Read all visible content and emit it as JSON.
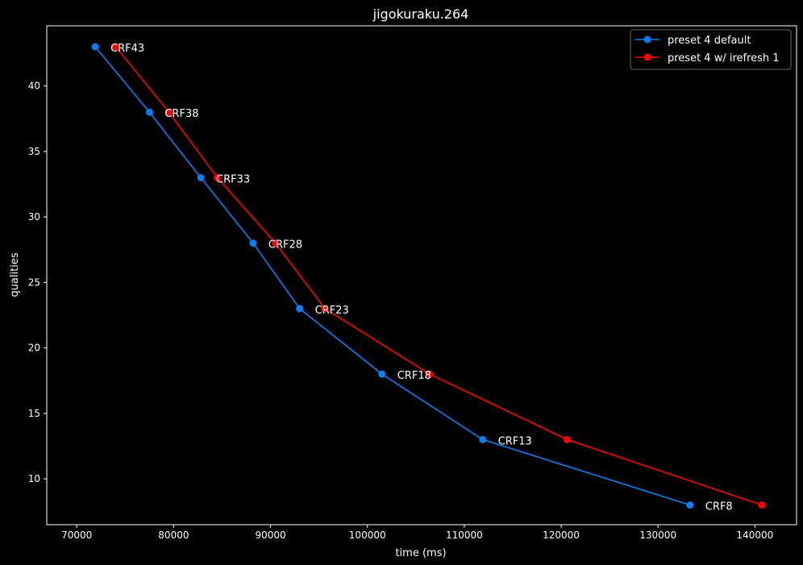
{
  "chart_data": {
    "type": "line",
    "title": "jigokuraku.264",
    "xlabel": "time (ms)",
    "ylabel": "qualities",
    "xlim": [
      66900,
      144300
    ],
    "ylim": [
      6.5,
      44.6
    ],
    "xticks": [
      70000,
      80000,
      90000,
      100000,
      110000,
      120000,
      130000,
      140000
    ],
    "yticks": [
      10,
      15,
      20,
      25,
      30,
      35,
      40
    ],
    "legend_position": "top-right",
    "series": [
      {
        "name": "preset 4 default",
        "color": "#0a7ff5",
        "x": [
          71900,
          77500,
          82800,
          88200,
          93000,
          101500,
          111900,
          133300
        ],
        "y": [
          43,
          38,
          33,
          28,
          23,
          18,
          13,
          8
        ]
      },
      {
        "name": "preset 4 w/ irefresh 1",
        "color": "#ff0000",
        "x": [
          74000,
          79500,
          84500,
          90500,
          95600,
          106400,
          120600,
          140700
        ],
        "y": [
          43,
          38,
          33,
          28,
          23,
          18,
          13,
          8
        ]
      }
    ],
    "annotations": [
      {
        "text": "CRF43",
        "x": 71900,
        "y": 43
      },
      {
        "text": "CRF38",
        "x": 77500,
        "y": 38
      },
      {
        "text": "CRF33",
        "x": 82800,
        "y": 33
      },
      {
        "text": "CRF28",
        "x": 88200,
        "y": 28
      },
      {
        "text": "CRF23",
        "x": 93000,
        "y": 23
      },
      {
        "text": "CRF18",
        "x": 101500,
        "y": 18
      },
      {
        "text": "CRF13",
        "x": 111900,
        "y": 13
      },
      {
        "text": "CRF8",
        "x": 133300,
        "y": 8
      }
    ]
  }
}
